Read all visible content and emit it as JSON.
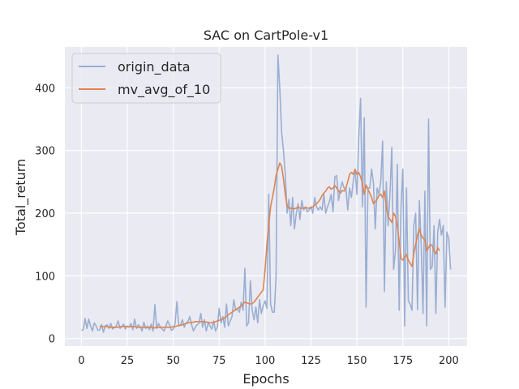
{
  "chart_data": {
    "type": "line",
    "title": "SAC on CartPole-v1",
    "xlabel": "Epochs",
    "ylabel": "Total_return",
    "xlim": [
      -9,
      210
    ],
    "ylim": [
      -12,
      465
    ],
    "xticks": [
      0,
      25,
      50,
      75,
      100,
      125,
      150,
      175,
      200
    ],
    "yticks": [
      0,
      100,
      200,
      300,
      400
    ],
    "grid": true,
    "legend_placement": "top-left",
    "series": [
      {
        "name": "origin_data",
        "color": "#9aaed2",
        "values": [
          13,
          14,
          32,
          16,
          31,
          20,
          12,
          25,
          20,
          13,
          14,
          22,
          10,
          20,
          22,
          16,
          24,
          15,
          18,
          20,
          28,
          16,
          19,
          23,
          15,
          20,
          18,
          24,
          14,
          31,
          16,
          22,
          19,
          12,
          26,
          16,
          20,
          14,
          23,
          12,
          54,
          16,
          24,
          18,
          15,
          12,
          20,
          28,
          22,
          13,
          15,
          24,
          59,
          20,
          22,
          30,
          18,
          25,
          27,
          35,
          22,
          12,
          18,
          22,
          24,
          40,
          18,
          30,
          12,
          25,
          20,
          15,
          28,
          12,
          18,
          48,
          25,
          35,
          18,
          55,
          20,
          28,
          35,
          62,
          45,
          48,
          42,
          58,
          45,
          112,
          20,
          25,
          92,
          45,
          30,
          50,
          25,
          62,
          40,
          52,
          60,
          48,
          230,
          55,
          42,
          42,
          100,
          452,
          400,
          330,
          300,
          262,
          200,
          222,
          180,
          225,
          175,
          200,
          215,
          190,
          220,
          205,
          210,
          202,
          205,
          210,
          200,
          225,
          210,
          205,
          210,
          205,
          230,
          200,
          210,
          218,
          230,
          202,
          258,
          260,
          220,
          238,
          250,
          240,
          240,
          205,
          240,
          225,
          250,
          270,
          230,
          320,
          383,
          210,
          352,
          50,
          240,
          240,
          270,
          248,
          175,
          240,
          230,
          250,
          315,
          75,
          250,
          180,
          230,
          305,
          110,
          140,
          278,
          45,
          210,
          270,
          20,
          240,
          60,
          55,
          45,
          180,
          200,
          46,
          220,
          150,
          40,
          235,
          20,
          350,
          110,
          115,
          180,
          40,
          170,
          190,
          165,
          180,
          50,
          170,
          160,
          110
        ]
      },
      {
        "name": "mv_avg_of_10",
        "color": "#dd8452",
        "start": 10,
        "values": [
          20,
          19,
          19,
          19,
          19,
          18,
          18,
          18,
          18,
          18,
          18,
          19,
          19,
          19,
          19,
          19,
          19,
          19,
          19,
          19,
          18,
          18,
          18,
          18,
          18,
          18,
          18,
          18,
          18,
          17,
          17,
          18,
          18,
          18,
          18,
          18,
          18,
          18,
          18,
          18,
          19,
          19,
          20,
          21,
          21,
          22,
          23,
          24,
          25,
          25,
          26,
          26,
          27,
          27,
          27,
          27,
          27,
          27,
          26,
          26,
          25,
          25,
          26,
          27,
          28,
          29,
          30,
          31,
          33,
          35,
          38,
          40,
          42,
          44,
          46,
          48,
          50,
          52,
          55,
          58,
          57,
          56,
          55,
          56,
          58,
          62,
          66,
          70,
          74,
          78,
          110,
          150,
          180,
          210,
          225,
          240,
          260,
          270,
          280,
          275,
          255,
          230,
          212,
          208,
          208,
          207,
          207,
          208,
          210,
          208,
          208,
          208,
          209,
          208,
          208,
          209,
          210,
          213,
          215,
          218,
          222,
          228,
          232,
          235,
          240,
          242,
          238,
          240,
          244,
          240,
          236,
          232,
          236,
          235,
          240,
          250,
          262,
          265,
          262,
          270,
          262,
          265,
          258,
          248,
          230,
          245,
          238,
          232,
          225,
          215,
          218,
          222,
          228,
          230,
          225,
          235,
          210,
          195,
          190,
          185,
          200,
          195,
          180,
          155,
          128,
          125,
          130,
          134,
          125,
          120,
          115,
          135,
          150,
          165,
          175,
          165,
          160,
          158,
          140,
          145,
          150,
          148,
          140,
          135,
          145,
          140
        ]
      }
    ]
  }
}
